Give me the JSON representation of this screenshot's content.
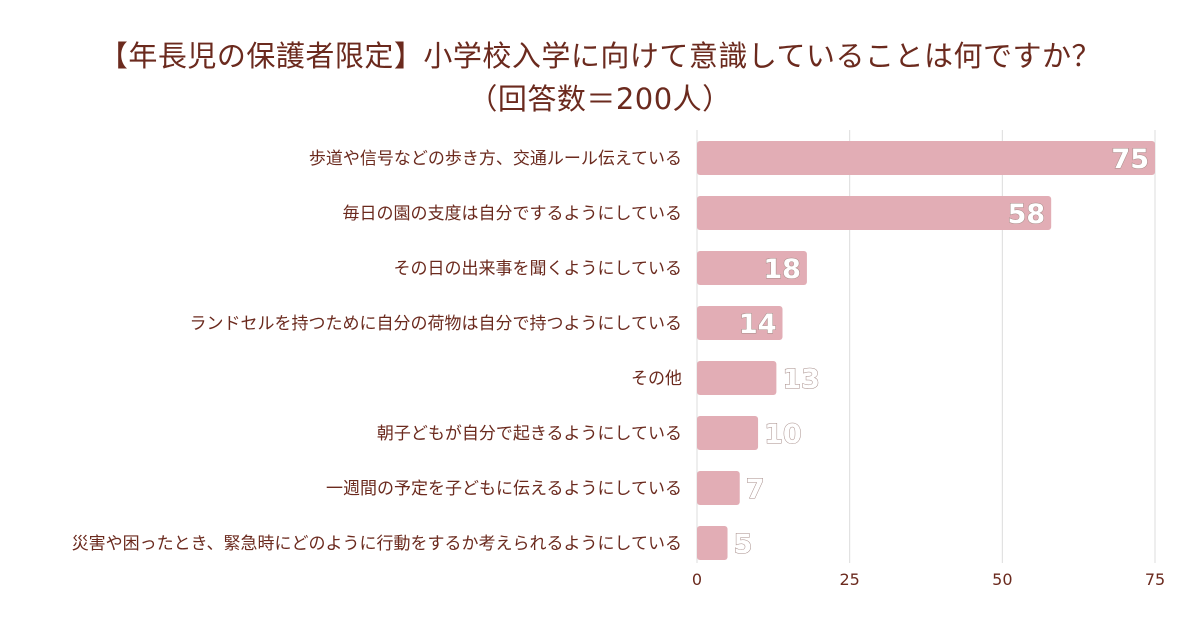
{
  "title": {
    "line1": "【年長児の保護者限定】小学校入学に向けて意識していることは何ですか？",
    "line2": "（回答数＝200人）"
  },
  "chart_data": {
    "type": "bar",
    "orientation": "horizontal",
    "categories": [
      "歩道や信号などの歩き方、交通ルール伝えている",
      "毎日の園の支度は自分でするようにしている",
      "その日の出来事を聞くようにしている",
      "ランドセルを持つために自分の荷物は自分で持つようにしている",
      "その他",
      "朝子どもが自分で起きるようにしている",
      "一週間の予定を子どもに伝えるようにしている",
      "災害や困ったとき、緊急時にどのように行動をするか考えられるようにしている"
    ],
    "values": [
      75,
      58,
      18,
      14,
      13,
      10,
      7,
      5
    ],
    "xlim": [
      0,
      75
    ],
    "xticks": [
      0,
      25,
      50,
      75
    ],
    "grid": true,
    "bar_color": "#e2adb5",
    "text_color": "#6b2a1e",
    "grid_color": "#dcdcdc"
  }
}
